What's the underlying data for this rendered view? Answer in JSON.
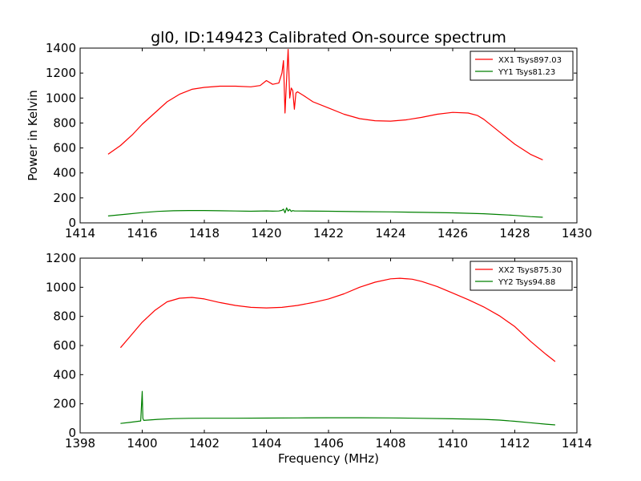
{
  "figure": {
    "title": "gl0, ID:149423 Calibrated On-source spectrum",
    "colors": {
      "xx": "#ff0000",
      "yy": "#008000"
    }
  },
  "chart_data": [
    {
      "type": "line",
      "title": "gl0, ID:149423 Calibrated On-source spectrum",
      "xlabel": "",
      "ylabel": "Power in Kelvin",
      "xlim": [
        1414,
        1430
      ],
      "ylim": [
        0,
        1400
      ],
      "xticks": [
        1414,
        1416,
        1418,
        1420,
        1422,
        1424,
        1426,
        1428,
        1430
      ],
      "yticks": [
        0,
        200,
        400,
        600,
        800,
        1000,
        1200,
        1400
      ],
      "grid": false,
      "legend": "top-right",
      "series": [
        {
          "name": "XX1 Tsys897.03",
          "color": "#ff0000",
          "x": [
            1414.9,
            1415.3,
            1415.7,
            1416.0,
            1416.4,
            1416.8,
            1417.2,
            1417.6,
            1418.0,
            1418.5,
            1419.0,
            1419.5,
            1419.8,
            1420.0,
            1420.2,
            1420.4,
            1420.5,
            1420.55,
            1420.6,
            1420.65,
            1420.7,
            1420.75,
            1420.8,
            1420.85,
            1420.9,
            1420.95,
            1421.0,
            1421.2,
            1421.5,
            1422.0,
            1422.5,
            1423.0,
            1423.5,
            1424.0,
            1424.5,
            1425.0,
            1425.5,
            1426.0,
            1426.5,
            1426.8,
            1427.0,
            1427.5,
            1428.0,
            1428.5,
            1428.9
          ],
          "y": [
            550,
            620,
            710,
            790,
            880,
            970,
            1030,
            1070,
            1085,
            1095,
            1095,
            1090,
            1100,
            1140,
            1110,
            1120,
            1200,
            1300,
            880,
            1150,
            1390,
            1000,
            1080,
            1060,
            910,
            1040,
            1050,
            1020,
            970,
            920,
            870,
            835,
            818,
            815,
            825,
            845,
            870,
            885,
            880,
            860,
            830,
            730,
            630,
            550,
            505
          ]
        },
        {
          "name": "YY1 Tsys81.23",
          "color": "#008000",
          "x": [
            1414.9,
            1415.5,
            1416.0,
            1416.5,
            1417.0,
            1417.5,
            1418.0,
            1418.5,
            1419.0,
            1419.5,
            1420.0,
            1420.2,
            1420.4,
            1420.5,
            1420.55,
            1420.6,
            1420.65,
            1420.7,
            1420.75,
            1420.8,
            1420.85,
            1420.9,
            1421.0,
            1422.0,
            1423.0,
            1424.0,
            1425.0,
            1426.0,
            1427.0,
            1427.5,
            1428.0,
            1428.5,
            1428.9
          ],
          "y": [
            55,
            70,
            82,
            92,
            97,
            99,
            99,
            97,
            95,
            93,
            96,
            94,
            95,
            100,
            110,
            80,
            120,
            95,
            108,
            92,
            98,
            96,
            95,
            93,
            90,
            88,
            84,
            80,
            73,
            67,
            60,
            50,
            45
          ]
        }
      ]
    },
    {
      "type": "line",
      "title": "",
      "xlabel": "Frequency (MHz)",
      "ylabel": "",
      "xlim": [
        1398,
        1414
      ],
      "ylim": [
        0,
        1200
      ],
      "xticks": [
        1398,
        1400,
        1402,
        1404,
        1406,
        1408,
        1410,
        1412,
        1414
      ],
      "yticks": [
        0,
        200,
        400,
        600,
        800,
        1000,
        1200
      ],
      "grid": false,
      "legend": "top-right",
      "series": [
        {
          "name": "XX2 Tsys875.30",
          "color": "#ff0000",
          "x": [
            1399.3,
            1399.6,
            1400.0,
            1400.4,
            1400.8,
            1401.2,
            1401.6,
            1402.0,
            1402.5,
            1403.0,
            1403.5,
            1404.0,
            1404.5,
            1405.0,
            1405.5,
            1406.0,
            1406.5,
            1407.0,
            1407.5,
            1408.0,
            1408.3,
            1408.7,
            1409.0,
            1409.5,
            1410.0,
            1410.5,
            1411.0,
            1411.5,
            1412.0,
            1412.5,
            1413.0,
            1413.3
          ],
          "y": [
            585,
            660,
            760,
            840,
            900,
            925,
            930,
            920,
            895,
            875,
            862,
            858,
            862,
            875,
            895,
            920,
            955,
            1000,
            1035,
            1058,
            1062,
            1055,
            1040,
            1005,
            960,
            915,
            865,
            805,
            730,
            630,
            540,
            490
          ]
        },
        {
          "name": "YY2 Tsys94.88",
          "color": "#008000",
          "x": [
            1399.3,
            1399.6,
            1399.95,
            1400.0,
            1400.02,
            1400.05,
            1400.5,
            1401.0,
            1401.5,
            1402.0,
            1403.0,
            1404.0,
            1405.0,
            1406.0,
            1407.0,
            1408.0,
            1409.0,
            1410.0,
            1411.0,
            1411.5,
            1412.0,
            1412.5,
            1413.0,
            1413.3
          ],
          "y": [
            65,
            72,
            82,
            285,
            100,
            86,
            93,
            98,
            100,
            101,
            101,
            102,
            103,
            104,
            104,
            103,
            100,
            97,
            93,
            88,
            80,
            70,
            60,
            55
          ]
        }
      ]
    }
  ]
}
